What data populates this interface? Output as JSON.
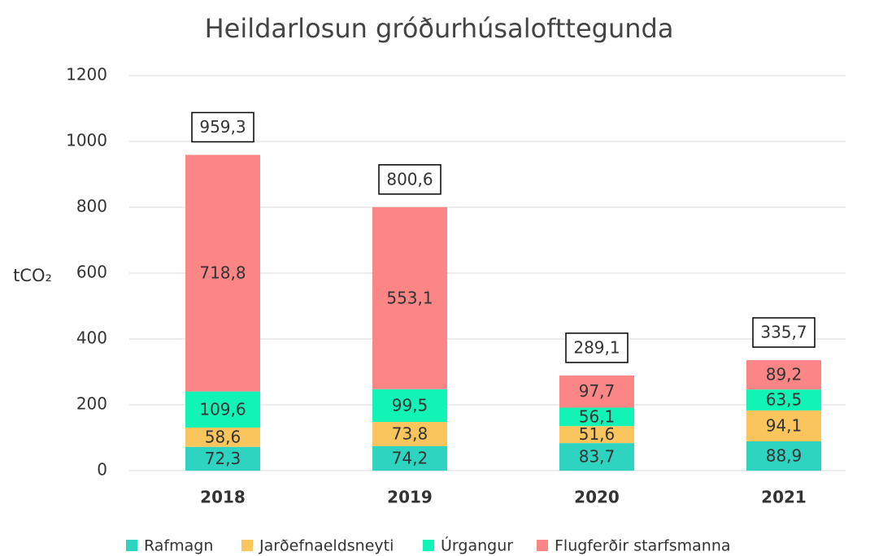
{
  "chart_data": {
    "type": "stacked_bar",
    "title": "Heildarlosun gróðurhúsalofttegunda",
    "ylabel": "tCO₂",
    "categories": [
      "2018",
      "2019",
      "2020",
      "2021"
    ],
    "series": [
      {
        "name": "Rafmagn",
        "color": "#2fd4c1",
        "values": [
          72.3,
          74.2,
          83.7,
          88.9
        ],
        "value_labels": [
          "72,3",
          "74,2",
          "83,7",
          "88,9"
        ]
      },
      {
        "name": "Jarðefnaeldsneyti",
        "color": "#f9c55c",
        "values": [
          58.6,
          73.8,
          51.6,
          94.1
        ],
        "value_labels": [
          "58,6",
          "73,8",
          "51,6",
          "94,1"
        ]
      },
      {
        "name": "Úrgangur",
        "color": "#12f4b6",
        "values": [
          109.6,
          99.5,
          56.1,
          63.5
        ],
        "value_labels": [
          "109,6",
          "99,5",
          "56,1",
          "63,5"
        ]
      },
      {
        "name": "Flugferðir starfsmanna",
        "color": "#fc8685",
        "values": [
          718.8,
          553.1,
          97.7,
          89.2
        ],
        "value_labels": [
          "718,8",
          "553,1",
          "97,7",
          "89,2"
        ]
      }
    ],
    "totals": [
      959.3,
      800.6,
      289.1,
      335.7
    ],
    "total_labels": [
      "959,3",
      "800,6",
      "289,1",
      "335,7"
    ],
    "ylim": [
      0,
      1200
    ],
    "yticks": [
      0,
      200,
      400,
      600,
      800,
      1000,
      1200
    ],
    "grid": true,
    "legend": "bottom"
  }
}
